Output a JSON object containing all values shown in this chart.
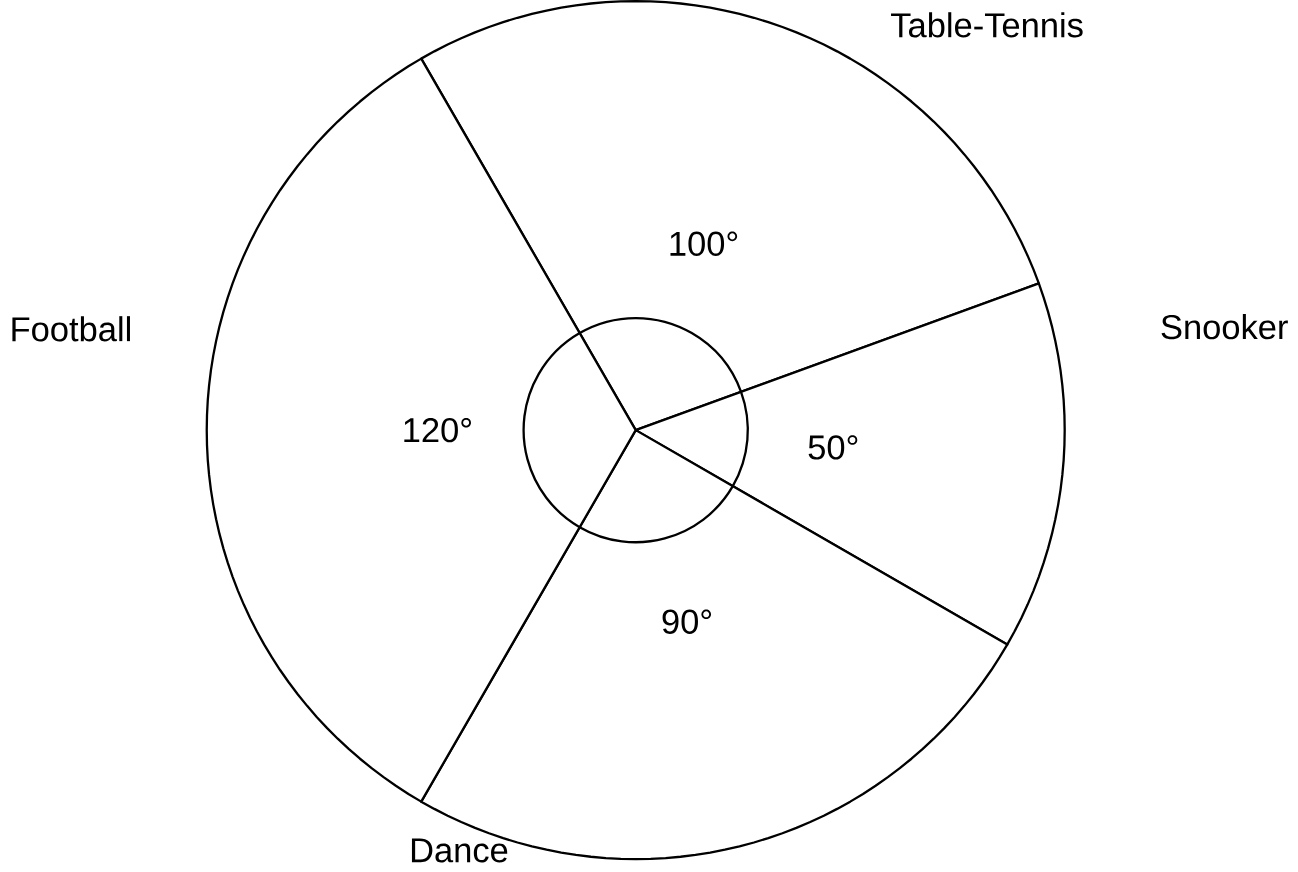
{
  "chart_data": {
    "type": "pie",
    "categories": [
      "Table-Tennis",
      "Snooker",
      "Dance",
      "Football"
    ],
    "values": [
      100,
      50,
      90,
      120
    ],
    "value_labels": [
      "100°",
      "50°",
      "90°",
      "120°"
    ],
    "colors": [
      "#ffffff",
      "#ffffff",
      "#ffffff",
      "#ffffff"
    ]
  }
}
